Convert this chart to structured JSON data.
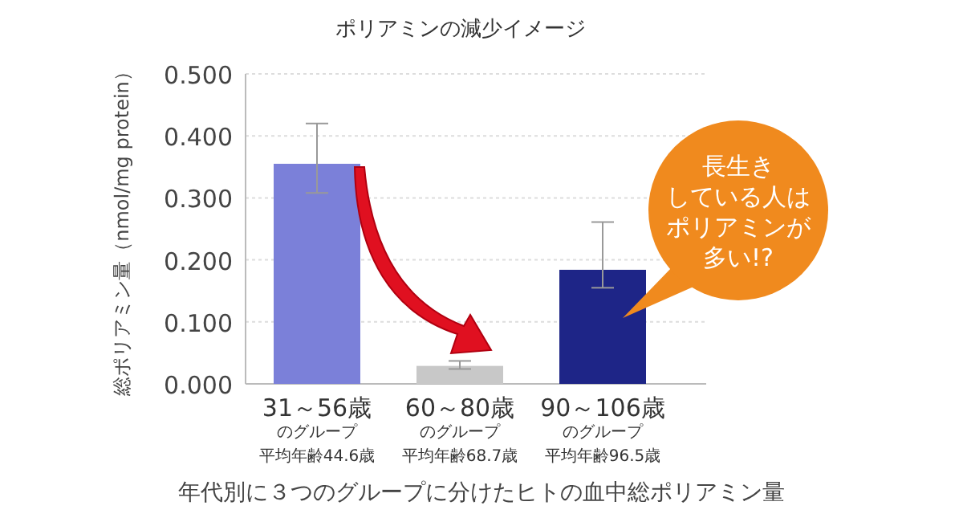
{
  "chart_data": {
    "type": "bar",
    "title": "ポリアミンの減少イメージ",
    "ylabel": "総ポリアミン量（nmol/mg protein）",
    "categories": [
      "31～56歳",
      "60～80歳",
      "90～106歳"
    ],
    "values": [
      0.355,
      0.029,
      0.184
    ],
    "errors": [
      [
        0.308,
        0.42
      ],
      [
        0.024,
        0.037
      ],
      [
        0.155,
        0.261
      ]
    ],
    "colors": [
      "#7b80d9",
      "#c8c8c8",
      "#1e2587"
    ],
    "ylim": [
      0,
      0.5
    ],
    "yticks": [
      {
        "value": 0,
        "label": "0.000"
      },
      {
        "value": 0.1,
        "label": "0.100"
      },
      {
        "value": 0.2,
        "label": "0.200"
      },
      {
        "value": 0.3,
        "label": "0.300"
      },
      {
        "value": 0.4,
        "label": "0.400"
      },
      {
        "value": 0.5,
        "label": "0.500"
      }
    ],
    "grid": "y",
    "annotations": [
      "長生き",
      "している人は",
      "ポリアミンが",
      "多い!?",
      "のグループ",
      "平均年齢44.6歳",
      "のグループ",
      "平均年齢68.7歳",
      "のグループ",
      "平均年齢96.5歳",
      "年代別に３つのグループに分けたヒトの血中総ポリアミン量"
    ]
  }
}
